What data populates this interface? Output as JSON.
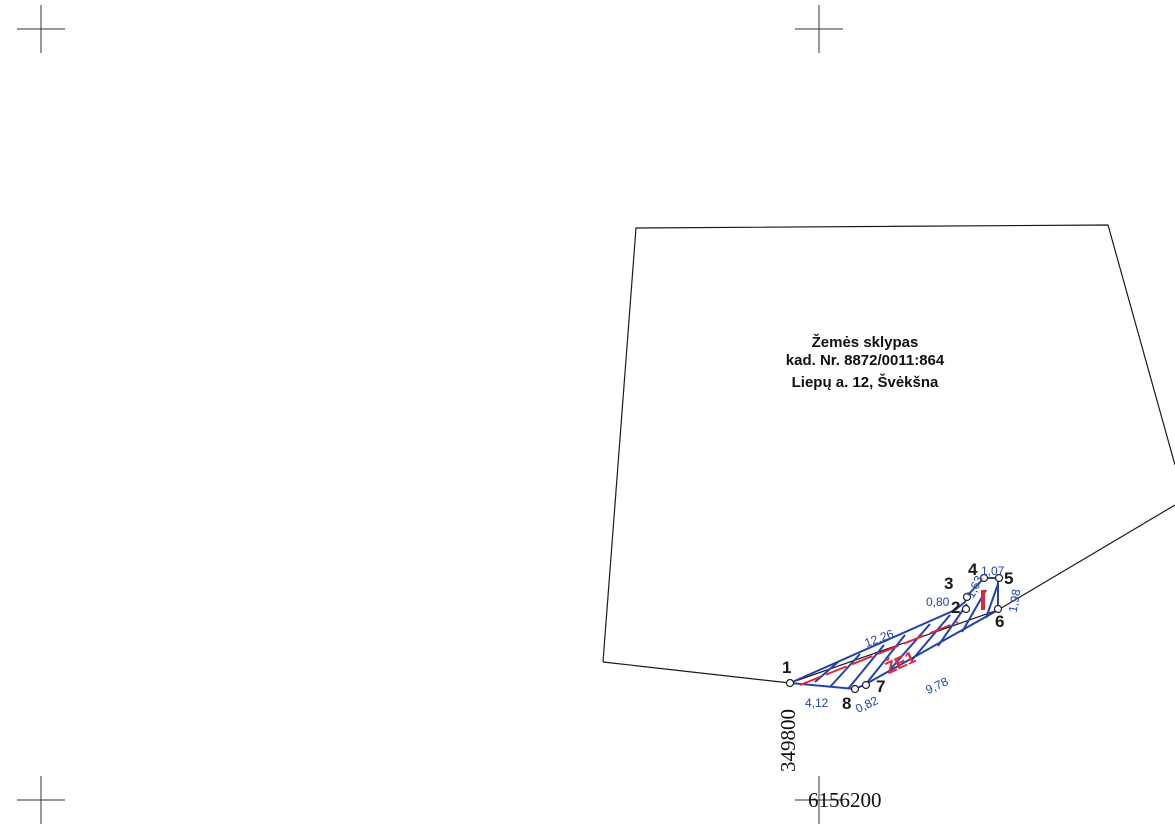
{
  "plot": {
    "title": "Žemės sklypas",
    "cadastral_number": "kad. Nr. 8872/0011:864",
    "address": "Liepų a. 12, Švėkšna"
  },
  "zone_label": "ŽE1",
  "points": [
    {
      "id": "1",
      "label": "1"
    },
    {
      "id": "2",
      "label": "2"
    },
    {
      "id": "3",
      "label": "3"
    },
    {
      "id": "4",
      "label": "4"
    },
    {
      "id": "5",
      "label": "5"
    },
    {
      "id": "6",
      "label": "6"
    },
    {
      "id": "7",
      "label": "7"
    },
    {
      "id": "8",
      "label": "8"
    }
  ],
  "dimensions": [
    {
      "segment": "1-2",
      "value": "12,26"
    },
    {
      "segment": "2-3",
      "value": "0,80"
    },
    {
      "segment": "3-4",
      "value": "1,63"
    },
    {
      "segment": "4-5",
      "value": "1,07"
    },
    {
      "segment": "5-6",
      "value": "1,98"
    },
    {
      "segment": "6-7",
      "value": "9,78"
    },
    {
      "segment": "7-8",
      "value": "0,82"
    },
    {
      "segment": "8-1",
      "value": "4,12"
    }
  ],
  "grid": {
    "x_coordinate": "349800",
    "y_coordinate": "6156200"
  },
  "colors": {
    "boundary": "#1a1a1a",
    "easement": "#2244aa",
    "zone": "#e0263a"
  }
}
